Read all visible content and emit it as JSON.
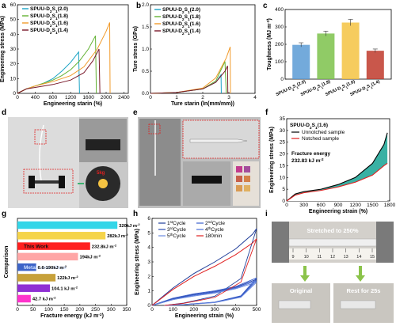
{
  "panels": {
    "a": {
      "label": "a"
    },
    "b": {
      "label": "b"
    },
    "c": {
      "label": "c"
    },
    "d": {
      "label": "d"
    },
    "e": {
      "label": "e"
    },
    "f": {
      "label": "f"
    },
    "g": {
      "label": "g"
    },
    "h": {
      "label": "h"
    },
    "i": {
      "label": "i"
    }
  },
  "photo_d": {
    "scale_readout": "",
    "weight_label": "5kg"
  },
  "photo_i": {
    "stretched": "Stretched to 250%",
    "original": "Original",
    "rest": "Rest for 25s",
    "ruler_ticks": [
      "9",
      "10",
      "11",
      "12",
      "13",
      "14",
      "15"
    ]
  },
  "colors": {
    "s20": "#1aa3c4",
    "s18": "#63b234",
    "s16": "#f19b2c",
    "s14": "#7a1a2b",
    "red": "#e02020",
    "green_fill": "#23a99a"
  },
  "chart_data": [
    {
      "id": "a",
      "type": "line",
      "xlabel": "Engineering starin (%)",
      "ylabel": "Engineering stress (MPa)",
      "xlim": [
        0,
        2500
      ],
      "ylim": [
        0,
        60
      ],
      "xticks": [
        0,
        400,
        800,
        1200,
        1600,
        2000,
        2400
      ],
      "yticks": [
        0,
        10,
        20,
        30,
        40,
        50,
        60
      ],
      "series": [
        {
          "name": "SPUU-D",
          "sub": "2",
          "mid": "S",
          "sub2": "1",
          "suffix": "(2.0)",
          "color": "#1aa3c4",
          "x": [
            0,
            200,
            400,
            600,
            800,
            1000,
            1200,
            1380,
            1400
          ],
          "y": [
            0,
            3,
            5,
            7,
            10,
            15,
            21,
            28,
            0
          ]
        },
        {
          "name": "SPUU-D",
          "sub": "2",
          "mid": "S",
          "sub2": "1",
          "suffix": "(1.8)",
          "color": "#63b234",
          "x": [
            0,
            200,
            400,
            600,
            800,
            1000,
            1200,
            1400,
            1600,
            1760,
            1780
          ],
          "y": [
            0,
            3,
            5,
            7,
            9,
            12,
            16,
            22,
            30,
            39,
            0
          ]
        },
        {
          "name": "SPUU-D",
          "sub": "2",
          "mid": "S",
          "sub2": "1",
          "suffix": "(1.6)",
          "color": "#f19b2c",
          "x": [
            0,
            200,
            400,
            800,
            1200,
            1500,
            1800,
            2000,
            2080,
            2090
          ],
          "y": [
            0,
            3,
            5,
            8,
            12,
            18,
            30,
            42,
            48,
            0
          ]
        },
        {
          "name": "SPUU-D",
          "sub": "2",
          "mid": "S",
          "sub2": "1",
          "suffix": "(1.4)",
          "color": "#7a1a2b",
          "x": [
            0,
            200,
            400,
            800,
            1200,
            1500,
            1700,
            1840,
            1860
          ],
          "y": [
            0,
            3,
            4,
            6,
            9,
            14,
            22,
            30,
            0
          ]
        }
      ]
    },
    {
      "id": "b",
      "type": "line",
      "xlabel": "Ture starin (ln(mm/mm))",
      "ylabel": "Ture stress (GPa)",
      "xlim": [
        0,
        4
      ],
      "ylim": [
        0,
        2.0
      ],
      "xticks": [
        0,
        1,
        2,
        3,
        4
      ],
      "yticks": [
        0.0,
        0.5,
        1.0,
        1.5,
        2.0
      ],
      "series": [
        {
          "name": "SPUU-D",
          "sub": "2",
          "mid": "S",
          "sub2": "1",
          "suffix": "(2.0)",
          "color": "#1aa3c4",
          "x": [
            0,
            1,
            2,
            2.5,
            2.7,
            2.71
          ],
          "y": [
            0,
            0.02,
            0.1,
            0.25,
            0.42,
            0
          ]
        },
        {
          "name": "SPUU-D",
          "sub": "2",
          "mid": "S",
          "sub2": "1",
          "suffix": "(1.8)",
          "color": "#63b234",
          "x": [
            0,
            1,
            2,
            2.5,
            2.85,
            2.9
          ],
          "y": [
            0,
            0.02,
            0.1,
            0.28,
            0.72,
            0
          ]
        },
        {
          "name": "SPUU-D",
          "sub": "2",
          "mid": "S",
          "sub2": "1",
          "suffix": "(1.6)",
          "color": "#f19b2c",
          "x": [
            0,
            1,
            2,
            2.5,
            2.9,
            3.05,
            3.06
          ],
          "y": [
            0,
            0.02,
            0.12,
            0.35,
            0.8,
            1.05,
            0
          ]
        },
        {
          "name": "SPUU-D",
          "sub": "2",
          "mid": "S",
          "sub2": "1",
          "suffix": "(1.4)",
          "color": "#7a1a2b",
          "x": [
            0,
            1,
            2,
            2.5,
            2.85,
            2.95,
            2.96
          ],
          "y": [
            0,
            0.02,
            0.1,
            0.25,
            0.5,
            0.62,
            0
          ]
        }
      ]
    },
    {
      "id": "c",
      "type": "bar",
      "ylabel": "Toughness (MJ m",
      "ylabel_sup": "-3",
      "ylabel_end": ")",
      "ylim": [
        0,
        400
      ],
      "yticks": [
        0,
        100,
        200,
        300,
        400
      ],
      "categories": [
        "SPUU-D2S1(2.0)",
        "SPUU-D2S1(1.8)",
        "SPUU-D2S1(1.6)",
        "SPUU-D2S1(1.4)"
      ],
      "values": [
        197,
        262,
        325,
        163
      ],
      "errors": [
        12,
        14,
        18,
        10
      ],
      "colors": [
        "#5b9bd5",
        "#7dc24b",
        "#f5c342",
        "#c0392b"
      ]
    },
    {
      "id": "f",
      "type": "area",
      "title": "SPUU-D",
      "title_sub": "2",
      "title_mid": "S",
      "title_sub2": "1",
      "title_suffix": "(1.6)",
      "xlabel": "Engineering strain (%)",
      "ylabel": "Engineering stress (MPa)",
      "xlim": [
        0,
        1800
      ],
      "ylim": [
        0,
        35
      ],
      "xticks": [
        0,
        300,
        600,
        900,
        1200,
        1500,
        1800
      ],
      "yticks": [
        0,
        5,
        10,
        15,
        20,
        25,
        30,
        35
      ],
      "annotation": "Fracture energy",
      "annotation_value": "232.83 kJ m",
      "annotation_sup": "-2",
      "series": [
        {
          "name": "Unnotched sample",
          "color": "#000000",
          "x": [
            0,
            150,
            300,
            600,
            900,
            1200,
            1500,
            1700,
            1760
          ],
          "y": [
            0,
            3,
            4,
            5,
            7,
            10,
            16,
            24,
            29
          ]
        },
        {
          "name": "Notched sample",
          "color": "#e02020",
          "x": [
            0,
            150,
            300,
            600,
            900,
            1200,
            1500,
            1700,
            1760
          ],
          "y": [
            0,
            2.5,
            3.5,
            4.5,
            6,
            8,
            11,
            15,
            16
          ]
        }
      ]
    },
    {
      "id": "g",
      "type": "bar",
      "orientation": "horizontal",
      "xlabel": "Fracture energy (kJ m",
      "xlabel_sup": "-2",
      "xlabel_end": ")",
      "ylabel": "Comparison",
      "xlim": [
        0,
        350
      ],
      "xticks": [
        0,
        50,
        100,
        150,
        200,
        250,
        300,
        350
      ],
      "bars": [
        {
          "value": 320,
          "label": "320kJ m",
          "sup": "-2",
          "color": "#33d6e8",
          "inner": ""
        },
        {
          "value": 282,
          "label": "282kJ m",
          "sup": "-2",
          "color": "#f5d44a",
          "inner": ""
        },
        {
          "value": 232.8,
          "label": "232.8kJ m",
          "sup": "-2",
          "color": "#ff2020",
          "inner": "This Work"
        },
        {
          "value": 194,
          "label": "194kJ m",
          "sup": "-2",
          "color": "#ffa6a6",
          "inner": ""
        },
        {
          "value": 60,
          "label": "0.6-190kJ m",
          "sup": "-2",
          "color": "#3d64c8",
          "inner": "Metals and alloys"
        },
        {
          "value": 122,
          "label": "122kJ m",
          "sup": "-2",
          "color": "#c7a13a",
          "inner": ""
        },
        {
          "value": 104.1,
          "label": "104.1 kJ m",
          "sup": "-2",
          "color": "#8f2fd3",
          "inner": ""
        },
        {
          "value": 42.7,
          "label": "42.7 kJ m",
          "sup": "-2",
          "color": "#ff33cc",
          "inner": ""
        }
      ]
    },
    {
      "id": "h",
      "type": "line",
      "xlabel": "Engineering strain (%)",
      "ylabel": "Engineering stress (MPa)",
      "xlim": [
        0,
        500
      ],
      "ylim": [
        0,
        6
      ],
      "xticks": [
        0,
        100,
        200,
        300,
        400,
        500
      ],
      "yticks": [
        0,
        1,
        2,
        3,
        4,
        5,
        6
      ],
      "series": [
        {
          "name": "1",
          "sup": "st",
          "suffix": "Cycle",
          "color": "#1f3d99",
          "x": [
            0,
            100,
            200,
            300,
            400,
            480,
            500
          ],
          "y": [
            0,
            1.2,
            2.2,
            3.0,
            3.9,
            4.9,
            5.3
          ]
        },
        {
          "name": "2",
          "sup": "nd",
          "suffix": "Cycle",
          "color": "#3a5fcd",
          "x": [
            0,
            100,
            200,
            300,
            400,
            500
          ],
          "y": [
            0,
            0.5,
            0.8,
            1.0,
            1.3,
            1.9
          ]
        },
        {
          "name": "3",
          "sup": "rd",
          "suffix": "Cycle",
          "color": "#2b4bb0",
          "x": [
            0,
            100,
            200,
            300,
            400,
            500
          ],
          "y": [
            0,
            0.45,
            0.75,
            0.95,
            1.25,
            1.8
          ]
        },
        {
          "name": "4",
          "sup": "th",
          "suffix": "Cycle",
          "color": "#4a6fd8",
          "x": [
            0,
            100,
            200,
            300,
            400,
            500
          ],
          "y": [
            0,
            0.4,
            0.7,
            0.9,
            1.2,
            1.7
          ]
        },
        {
          "name": "5",
          "sup": "th",
          "suffix": "Cycle",
          "color": "#6a8ae0",
          "x": [
            0,
            100,
            200,
            300,
            400,
            500
          ],
          "y": [
            0,
            0.4,
            0.65,
            0.85,
            1.15,
            1.6
          ]
        },
        {
          "name": "180min",
          "sup": "",
          "suffix": "",
          "color": "#e02020",
          "x": [
            0,
            100,
            200,
            300,
            400,
            480,
            500
          ],
          "y": [
            0,
            1.1,
            2.0,
            2.7,
            3.5,
            4.3,
            4.6
          ]
        }
      ]
    }
  ]
}
